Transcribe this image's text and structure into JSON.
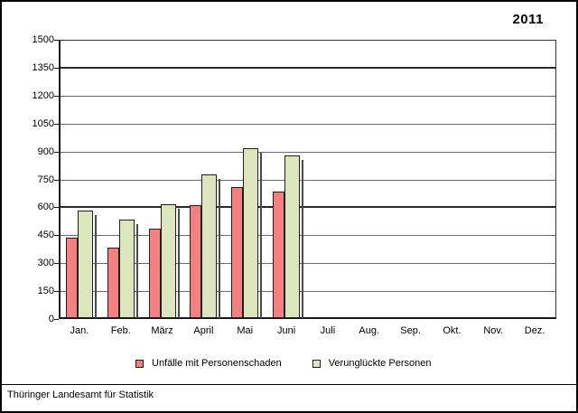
{
  "window": {
    "title_year": "2011",
    "footer": "Thüringer Landesamt für Statistik"
  },
  "chart_data": {
    "type": "bar",
    "title": "2011",
    "categories": [
      "Jan.",
      "Feb.",
      "März",
      "April",
      "Mai",
      "Juni",
      "Juli",
      "Aug.",
      "Sep.",
      "Okt.",
      "Nov.",
      "Dez."
    ],
    "series": [
      {
        "name": "Unfälle mit Personenschaden",
        "color": "#F48080",
        "values": [
          430,
          380,
          480,
          605,
          705,
          680,
          null,
          null,
          null,
          null,
          null,
          null
        ]
      },
      {
        "name": "Verunglückte Personen",
        "color": "#DCE6BD",
        "values": [
          580,
          530,
          610,
          770,
          915,
          875,
          null,
          null,
          null,
          null,
          null,
          null
        ]
      }
    ],
    "xlabel": "",
    "ylabel": "",
    "ylim": [
      0,
      1500
    ],
    "ytick_step": 150,
    "yticks": [
      0,
      150,
      300,
      450,
      600,
      750,
      900,
      1050,
      1200,
      1350,
      1500
    ],
    "emphasized_gridlines": [
      600,
      1350
    ],
    "grid": true,
    "legend_position": "bottom",
    "bar_border_color": "#1f1f1f",
    "shadow_color": "#4a4a4a"
  }
}
